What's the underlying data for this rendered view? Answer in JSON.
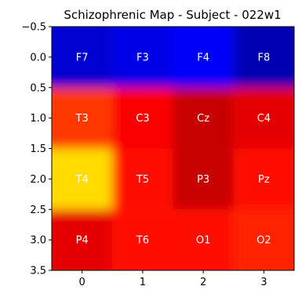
{
  "chart_data": {
    "type": "heatmap",
    "title": "Schizophrenic Map - Subject -  022w1",
    "xlabel": "",
    "ylabel": "",
    "xlim": [
      -0.5,
      3.5
    ],
    "ylim": [
      -0.5,
      3.5
    ],
    "y_inverted": true,
    "x_ticks": [
      "0",
      "1",
      "2",
      "3"
    ],
    "y_ticks": [
      "−0.5",
      "0.0",
      "0.5",
      "1.0",
      "1.5",
      "2.0",
      "2.5",
      "3.0",
      "3.5"
    ],
    "colormap": "jet",
    "grid": false,
    "interpolation": "bicubic",
    "rows": 4,
    "cols": 4,
    "electrodes": [
      [
        "F7",
        "F3",
        "F4",
        "F8"
      ],
      [
        "T3",
        "C3",
        "Cz",
        "C4"
      ],
      [
        "T4",
        "T5",
        "P3",
        "Pz"
      ],
      [
        "P4",
        "T6",
        "O1",
        "O2"
      ]
    ],
    "values": [
      [
        0.08,
        0.1,
        0.12,
        0.05
      ],
      [
        0.82,
        0.88,
        0.93,
        0.9
      ],
      [
        0.66,
        0.86,
        0.93,
        0.86
      ],
      [
        0.9,
        0.86,
        0.86,
        0.84
      ]
    ]
  }
}
